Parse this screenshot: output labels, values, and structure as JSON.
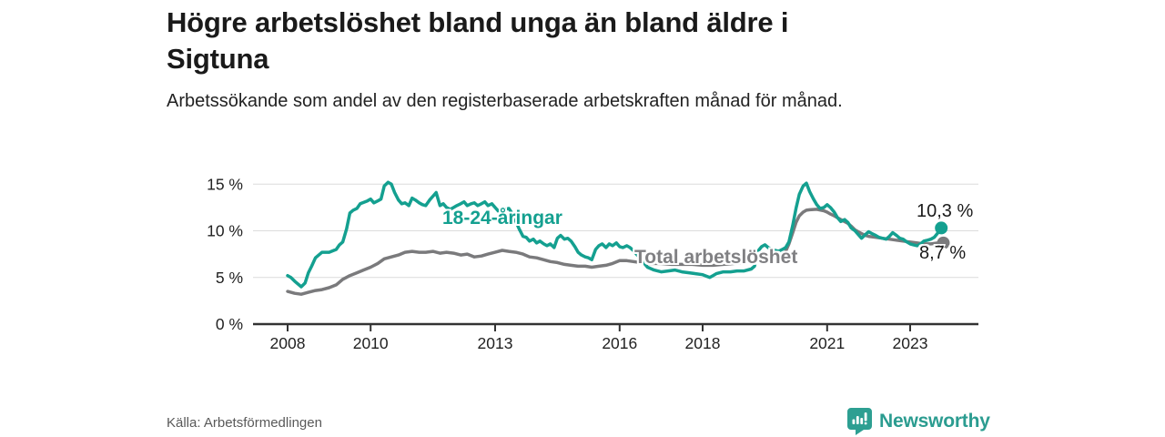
{
  "header": {
    "title_lines": [
      "Högre arbetslöshet bland unga än bland äldre i",
      "Sigtuna"
    ],
    "subtitle": "Arbetssökande som andel av den registerbaserade arbetskraften månad för månad."
  },
  "footer": {
    "source": "Källa: Arbetsförmedlingen",
    "brand": "Newsworthy"
  },
  "colors": {
    "young": "#14a090",
    "total": "#7a7a7c",
    "grid": "#dcdcdc",
    "axis": "#333333",
    "tick_text": "#222222",
    "label_text": "#1a1a1a",
    "total_label": "#808083",
    "brand": "#2b9c90",
    "source_text": "#595959"
  },
  "chart_data": {
    "type": "line",
    "title": "Högre arbetslöshet bland unga än bland äldre i Sigtuna",
    "xlabel": "",
    "ylabel": "",
    "xlim": [
      2007.17,
      2024.64
    ],
    "ylim": [
      0,
      15.5
    ],
    "grid": "horizontal",
    "legend_position": "inline-labels",
    "yticks": [
      {
        "value": 15,
        "label": "15 %"
      },
      {
        "value": 10,
        "label": "10 %"
      },
      {
        "value": 5,
        "label": "5 %"
      },
      {
        "value": 0,
        "label": "0 %"
      }
    ],
    "xticks": [
      {
        "value": 2008,
        "label": "2008"
      },
      {
        "value": 2010,
        "label": "2010"
      },
      {
        "value": 2013,
        "label": "2013"
      },
      {
        "value": 2016,
        "label": "2016"
      },
      {
        "value": 2018,
        "label": "2018"
      },
      {
        "value": 2021,
        "label": "2021"
      },
      {
        "value": 2023,
        "label": "2023"
      }
    ],
    "series": [
      {
        "name": "18-24-åringar",
        "color": "#14a090",
        "end_label": "10,3 %",
        "end_value": 10.3,
        "points": [
          [
            2008.0,
            5.2
          ],
          [
            2008.08,
            5.0
          ],
          [
            2008.17,
            4.6
          ],
          [
            2008.33,
            4.0
          ],
          [
            2008.42,
            4.4
          ],
          [
            2008.5,
            5.5
          ],
          [
            2008.58,
            6.2
          ],
          [
            2008.67,
            7.1
          ],
          [
            2008.83,
            7.7
          ],
          [
            2009.0,
            7.7
          ],
          [
            2009.17,
            8.0
          ],
          [
            2009.25,
            8.5
          ],
          [
            2009.33,
            8.8
          ],
          [
            2009.42,
            10.2
          ],
          [
            2009.5,
            11.9
          ],
          [
            2009.58,
            12.2
          ],
          [
            2009.67,
            12.4
          ],
          [
            2009.75,
            12.9
          ],
          [
            2009.92,
            13.2
          ],
          [
            2010.0,
            13.4
          ],
          [
            2010.08,
            13.0
          ],
          [
            2010.17,
            13.2
          ],
          [
            2010.25,
            13.4
          ],
          [
            2010.33,
            14.8
          ],
          [
            2010.42,
            15.2
          ],
          [
            2010.5,
            15.0
          ],
          [
            2010.58,
            14.1
          ],
          [
            2010.67,
            13.3
          ],
          [
            2010.75,
            12.9
          ],
          [
            2010.83,
            13.0
          ],
          [
            2010.92,
            12.7
          ],
          [
            2011.0,
            13.5
          ],
          [
            2011.08,
            13.3
          ],
          [
            2011.17,
            13.0
          ],
          [
            2011.25,
            12.8
          ],
          [
            2011.33,
            12.7
          ],
          [
            2011.42,
            13.3
          ],
          [
            2011.5,
            13.7
          ],
          [
            2011.58,
            14.1
          ],
          [
            2011.67,
            12.7
          ],
          [
            2011.75,
            12.9
          ],
          [
            2011.83,
            12.5
          ],
          [
            2011.92,
            12.3
          ],
          [
            2012.0,
            12.5
          ],
          [
            2012.08,
            12.7
          ],
          [
            2012.17,
            12.9
          ],
          [
            2012.25,
            13.1
          ],
          [
            2012.33,
            12.7
          ],
          [
            2012.42,
            12.9
          ],
          [
            2012.5,
            13.0
          ],
          [
            2012.58,
            12.7
          ],
          [
            2012.67,
            12.9
          ],
          [
            2012.75,
            13.1
          ],
          [
            2012.83,
            12.7
          ],
          [
            2012.92,
            12.9
          ],
          [
            2013.0,
            12.5
          ],
          [
            2013.08,
            12.1
          ],
          [
            2013.17,
            12.4
          ],
          [
            2013.25,
            12.3
          ],
          [
            2013.33,
            12.4
          ],
          [
            2013.42,
            11.8
          ],
          [
            2013.5,
            11.0
          ],
          [
            2013.58,
            10.2
          ],
          [
            2013.67,
            9.4
          ],
          [
            2013.75,
            9.3
          ],
          [
            2013.83,
            8.9
          ],
          [
            2013.92,
            9.1
          ],
          [
            2014.0,
            8.7
          ],
          [
            2014.08,
            8.9
          ],
          [
            2014.17,
            8.6
          ],
          [
            2014.25,
            8.4
          ],
          [
            2014.33,
            8.6
          ],
          [
            2014.42,
            8.2
          ],
          [
            2014.5,
            9.2
          ],
          [
            2014.58,
            9.5
          ],
          [
            2014.67,
            9.1
          ],
          [
            2014.75,
            9.2
          ],
          [
            2014.83,
            8.9
          ],
          [
            2014.92,
            8.3
          ],
          [
            2015.0,
            7.7
          ],
          [
            2015.08,
            7.4
          ],
          [
            2015.17,
            7.2
          ],
          [
            2015.25,
            7.1
          ],
          [
            2015.33,
            6.9
          ],
          [
            2015.42,
            8.0
          ],
          [
            2015.5,
            8.4
          ],
          [
            2015.58,
            8.6
          ],
          [
            2015.67,
            8.2
          ],
          [
            2015.75,
            8.6
          ],
          [
            2015.83,
            8.4
          ],
          [
            2015.92,
            8.7
          ],
          [
            2016.0,
            8.3
          ],
          [
            2016.08,
            8.2
          ],
          [
            2016.17,
            8.4
          ],
          [
            2016.25,
            8.2
          ],
          [
            2016.33,
            7.9
          ],
          [
            2016.5,
            7.0
          ],
          [
            2016.67,
            6.1
          ],
          [
            2016.83,
            5.8
          ],
          [
            2017.0,
            5.6
          ],
          [
            2017.17,
            5.7
          ],
          [
            2017.33,
            5.8
          ],
          [
            2017.5,
            5.6
          ],
          [
            2017.67,
            5.5
          ],
          [
            2017.83,
            5.4
          ],
          [
            2018.0,
            5.3
          ],
          [
            2018.17,
            5.0
          ],
          [
            2018.25,
            5.2
          ],
          [
            2018.33,
            5.4
          ],
          [
            2018.5,
            5.6
          ],
          [
            2018.67,
            5.6
          ],
          [
            2018.83,
            5.7
          ],
          [
            2019.0,
            5.7
          ],
          [
            2019.17,
            5.9
          ],
          [
            2019.25,
            6.2
          ],
          [
            2019.33,
            7.8
          ],
          [
            2019.42,
            8.3
          ],
          [
            2019.5,
            8.5
          ],
          [
            2019.58,
            8.2
          ],
          [
            2019.67,
            8.0
          ],
          [
            2019.75,
            7.9
          ],
          [
            2019.83,
            7.8
          ],
          [
            2019.92,
            8.0
          ],
          [
            2020.0,
            8.2
          ],
          [
            2020.08,
            8.8
          ],
          [
            2020.17,
            10.6
          ],
          [
            2020.25,
            12.4
          ],
          [
            2020.33,
            13.9
          ],
          [
            2020.42,
            14.8
          ],
          [
            2020.5,
            15.1
          ],
          [
            2020.58,
            14.2
          ],
          [
            2020.67,
            13.4
          ],
          [
            2020.75,
            12.8
          ],
          [
            2020.83,
            12.4
          ],
          [
            2020.92,
            12.5
          ],
          [
            2021.0,
            12.8
          ],
          [
            2021.08,
            12.5
          ],
          [
            2021.17,
            12.0
          ],
          [
            2021.25,
            11.4
          ],
          [
            2021.33,
            11.0
          ],
          [
            2021.42,
            11.2
          ],
          [
            2021.5,
            10.9
          ],
          [
            2021.58,
            10.3
          ],
          [
            2021.67,
            10.0
          ],
          [
            2021.75,
            9.6
          ],
          [
            2021.83,
            9.2
          ],
          [
            2021.92,
            9.6
          ],
          [
            2022.0,
            9.9
          ],
          [
            2022.08,
            9.7
          ],
          [
            2022.17,
            9.5
          ],
          [
            2022.25,
            9.3
          ],
          [
            2022.33,
            9.2
          ],
          [
            2022.42,
            9.1
          ],
          [
            2022.5,
            9.4
          ],
          [
            2022.58,
            9.8
          ],
          [
            2022.67,
            9.5
          ],
          [
            2022.75,
            9.2
          ],
          [
            2022.83,
            9.1
          ],
          [
            2022.92,
            8.8
          ],
          [
            2023.0,
            8.6
          ],
          [
            2023.08,
            8.5
          ],
          [
            2023.17,
            8.4
          ],
          [
            2023.25,
            8.6
          ],
          [
            2023.33,
            8.9
          ],
          [
            2023.42,
            9.0
          ],
          [
            2023.5,
            9.1
          ],
          [
            2023.58,
            9.3
          ],
          [
            2023.67,
            9.8
          ],
          [
            2023.75,
            10.3
          ]
        ]
      },
      {
        "name": "Total arbetslöshet",
        "color": "#7a7a7c",
        "end_label": "8,7 %",
        "end_value": 8.7,
        "points": [
          [
            2008.0,
            3.5
          ],
          [
            2008.17,
            3.3
          ],
          [
            2008.33,
            3.2
          ],
          [
            2008.5,
            3.4
          ],
          [
            2008.67,
            3.6
          ],
          [
            2008.83,
            3.7
          ],
          [
            2009.0,
            3.9
          ],
          [
            2009.17,
            4.2
          ],
          [
            2009.33,
            4.8
          ],
          [
            2009.5,
            5.2
          ],
          [
            2009.67,
            5.5
          ],
          [
            2009.83,
            5.8
          ],
          [
            2010.0,
            6.1
          ],
          [
            2010.17,
            6.5
          ],
          [
            2010.33,
            7.0
          ],
          [
            2010.5,
            7.2
          ],
          [
            2010.67,
            7.4
          ],
          [
            2010.83,
            7.7
          ],
          [
            2011.0,
            7.8
          ],
          [
            2011.17,
            7.7
          ],
          [
            2011.33,
            7.7
          ],
          [
            2011.5,
            7.8
          ],
          [
            2011.67,
            7.6
          ],
          [
            2011.83,
            7.7
          ],
          [
            2012.0,
            7.6
          ],
          [
            2012.17,
            7.4
          ],
          [
            2012.33,
            7.5
          ],
          [
            2012.5,
            7.2
          ],
          [
            2012.67,
            7.3
          ],
          [
            2012.83,
            7.5
          ],
          [
            2013.0,
            7.7
          ],
          [
            2013.17,
            7.9
          ],
          [
            2013.33,
            7.8
          ],
          [
            2013.5,
            7.7
          ],
          [
            2013.67,
            7.5
          ],
          [
            2013.83,
            7.2
          ],
          [
            2014.0,
            7.1
          ],
          [
            2014.17,
            6.9
          ],
          [
            2014.33,
            6.7
          ],
          [
            2014.5,
            6.6
          ],
          [
            2014.67,
            6.4
          ],
          [
            2014.83,
            6.3
          ],
          [
            2015.0,
            6.2
          ],
          [
            2015.17,
            6.2
          ],
          [
            2015.33,
            6.1
          ],
          [
            2015.5,
            6.2
          ],
          [
            2015.67,
            6.3
          ],
          [
            2015.83,
            6.5
          ],
          [
            2016.0,
            6.8
          ],
          [
            2016.17,
            6.8
          ],
          [
            2016.33,
            6.7
          ],
          [
            2016.5,
            6.6
          ],
          [
            2016.67,
            6.5
          ],
          [
            2016.83,
            6.5
          ],
          [
            2017.0,
            6.5
          ],
          [
            2017.25,
            6.4
          ],
          [
            2017.5,
            6.4
          ],
          [
            2017.75,
            6.4
          ],
          [
            2018.0,
            6.3
          ],
          [
            2018.25,
            6.3
          ],
          [
            2018.5,
            6.4
          ],
          [
            2018.75,
            6.5
          ],
          [
            2019.0,
            6.6
          ],
          [
            2019.25,
            6.8
          ],
          [
            2019.5,
            7.0
          ],
          [
            2019.75,
            7.2
          ],
          [
            2019.92,
            7.5
          ],
          [
            2020.0,
            7.8
          ],
          [
            2020.08,
            8.6
          ],
          [
            2020.17,
            9.8
          ],
          [
            2020.25,
            10.9
          ],
          [
            2020.33,
            11.6
          ],
          [
            2020.42,
            12.0
          ],
          [
            2020.5,
            12.2
          ],
          [
            2020.58,
            12.25
          ],
          [
            2020.75,
            12.3
          ],
          [
            2020.92,
            12.15
          ],
          [
            2021.0,
            12.0
          ],
          [
            2021.08,
            11.8
          ],
          [
            2021.17,
            11.6
          ],
          [
            2021.33,
            11.2
          ],
          [
            2021.5,
            10.8
          ],
          [
            2021.58,
            10.5
          ],
          [
            2021.67,
            10.1
          ],
          [
            2021.83,
            9.7
          ],
          [
            2021.92,
            9.5
          ],
          [
            2022.0,
            9.4
          ],
          [
            2022.17,
            9.3
          ],
          [
            2022.33,
            9.2
          ],
          [
            2022.5,
            9.1
          ],
          [
            2022.67,
            9.0
          ],
          [
            2022.83,
            8.9
          ],
          [
            2023.0,
            8.8
          ],
          [
            2023.17,
            8.7
          ],
          [
            2023.33,
            8.6
          ],
          [
            2023.5,
            8.6
          ],
          [
            2023.67,
            8.7
          ],
          [
            2023.8,
            8.7
          ]
        ]
      }
    ]
  }
}
